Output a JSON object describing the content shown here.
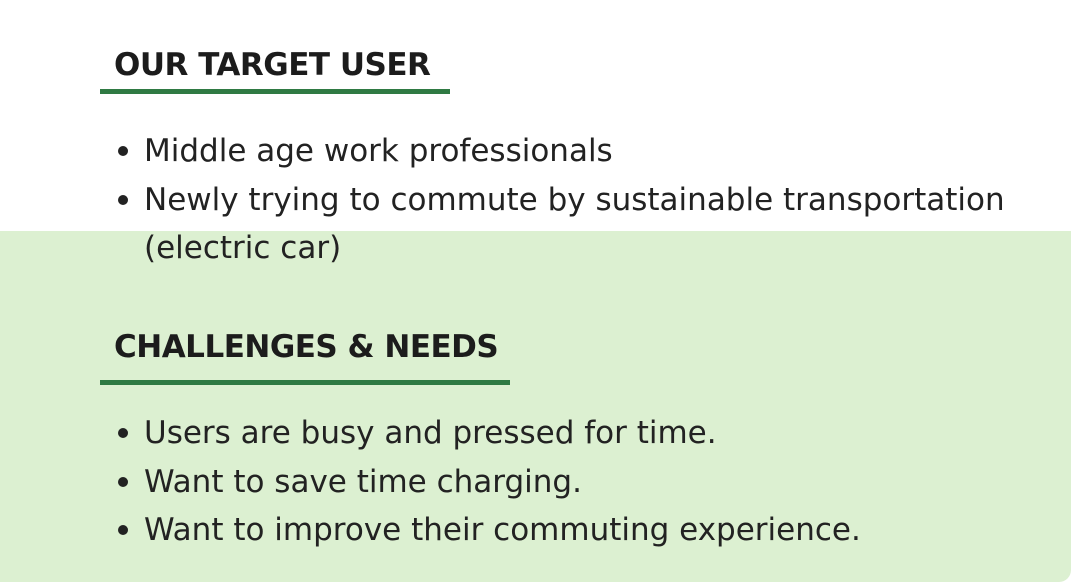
{
  "section_target_user": {
    "heading": "OUR TARGET USER",
    "bullets": [
      "Middle age work professionals",
      "Newly trying to commute by sustainable transportation",
      "(electric car)"
    ]
  },
  "section_challenges": {
    "heading": "CHALLENGES & NEEDS",
    "bullets": [
      "Users are busy and pressed for time.",
      "Want to save time charging.",
      "Want to improve their commuting experience."
    ]
  },
  "colors": {
    "accent_underline": "#2f7a43",
    "panel_background": "#dcf0d1"
  }
}
